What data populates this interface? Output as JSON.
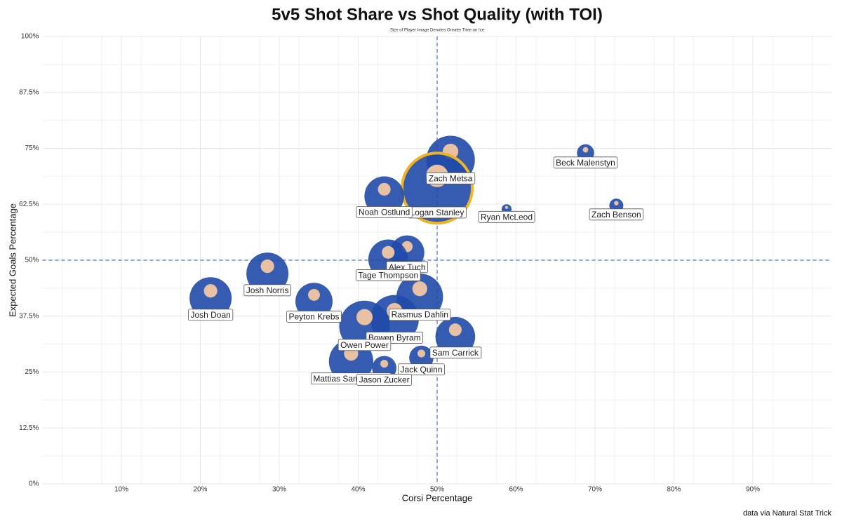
{
  "chart_data": {
    "type": "bubble",
    "title": "5v5 Shot Share vs Shot Quality (with TOI)",
    "subtitle": "Size of Player Image Denotes Greater Time on Ice",
    "x_label": "Corsi Percentage",
    "y_label": "Expected Goals Percentage",
    "caption": "data via Natural Stat Trick",
    "labels": [
      "Zach Metsa",
      "Logan Stanley",
      "Beck Malenstyn",
      "Zach Benson",
      "Ryan McLeod",
      "Noah Ostlund",
      "Alex Tuch",
      "Tage Thompson",
      "Josh Norris",
      "Josh Doan",
      "Peyton Krebs",
      "Rasmus Dahlin",
      "Bowen Byram",
      "Owen Power",
      "Sam Carrick",
      "Jack Quinn",
      "Mattias Samuelsson",
      "Jason Zucker"
    ],
    "x": [
      51.7,
      50.0,
      68.8,
      72.7,
      58.8,
      43.3,
      46.2,
      43.8,
      28.5,
      21.3,
      34.4,
      47.8,
      44.6,
      40.8,
      52.3,
      48.0,
      39.1,
      43.3
    ],
    "y": [
      72.4,
      66.1,
      74.0,
      62.2,
      61.4,
      64.3,
      51.7,
      50.2,
      47.0,
      41.5,
      40.8,
      41.8,
      36.8,
      35.3,
      32.9,
      28.2,
      27.4,
      25.9
    ],
    "sizes": [
      1200,
      2500,
      150,
      100,
      50,
      800,
      600,
      800,
      900,
      900,
      700,
      1100,
      1200,
      1300,
      800,
      300,
      1000,
      300
    ],
    "color": "#1f4aa8",
    "xlim": [
      0,
      100
    ],
    "ylim": [
      0,
      100
    ],
    "xticks": [
      {
        "value": 10,
        "label": "10%"
      },
      {
        "value": 20,
        "label": "20%"
      },
      {
        "value": 30,
        "label": "30%"
      },
      {
        "value": 40,
        "label": "40%"
      },
      {
        "value": 50,
        "label": "50%"
      },
      {
        "value": 60,
        "label": "60%"
      },
      {
        "value": 70,
        "label": "70%"
      },
      {
        "value": 80,
        "label": "80%"
      },
      {
        "value": 90,
        "label": "90%"
      }
    ],
    "yticks": [
      {
        "value": 0,
        "label": "0%"
      },
      {
        "value": 12.5,
        "label": "12.5%"
      },
      {
        "value": 25,
        "label": "25%"
      },
      {
        "value": 37.5,
        "label": "37.5%"
      },
      {
        "value": 50,
        "label": "50%"
      },
      {
        "value": 62.5,
        "label": "62.5%"
      },
      {
        "value": 75,
        "label": "75%"
      },
      {
        "value": 87.5,
        "label": "87.5%"
      },
      {
        "value": 100,
        "label": "100%"
      }
    ],
    "reference_x": 50,
    "reference_y": 50,
    "grid": true
  }
}
